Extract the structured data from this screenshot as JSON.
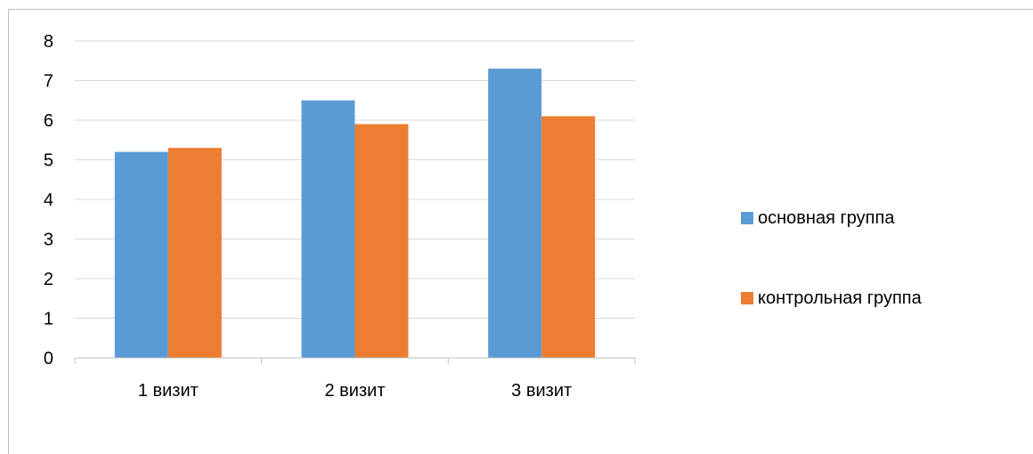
{
  "chart_data": {
    "type": "bar",
    "categories": [
      "1 визит",
      "2 визит",
      "3 визит"
    ],
    "series": [
      {
        "name": "основная группа",
        "color": "#5b9bd5",
        "values": [
          5.2,
          6.5,
          7.3
        ]
      },
      {
        "name": "контрольная группа",
        "color": "#ed7d31",
        "values": [
          5.3,
          5.9,
          6.1
        ]
      }
    ],
    "y_ticks": [
      "0",
      "1",
      "2",
      "3",
      "4",
      "5",
      "6",
      "7",
      "8"
    ],
    "ylim": [
      0,
      8
    ],
    "grid": true,
    "legend_position": "right"
  }
}
